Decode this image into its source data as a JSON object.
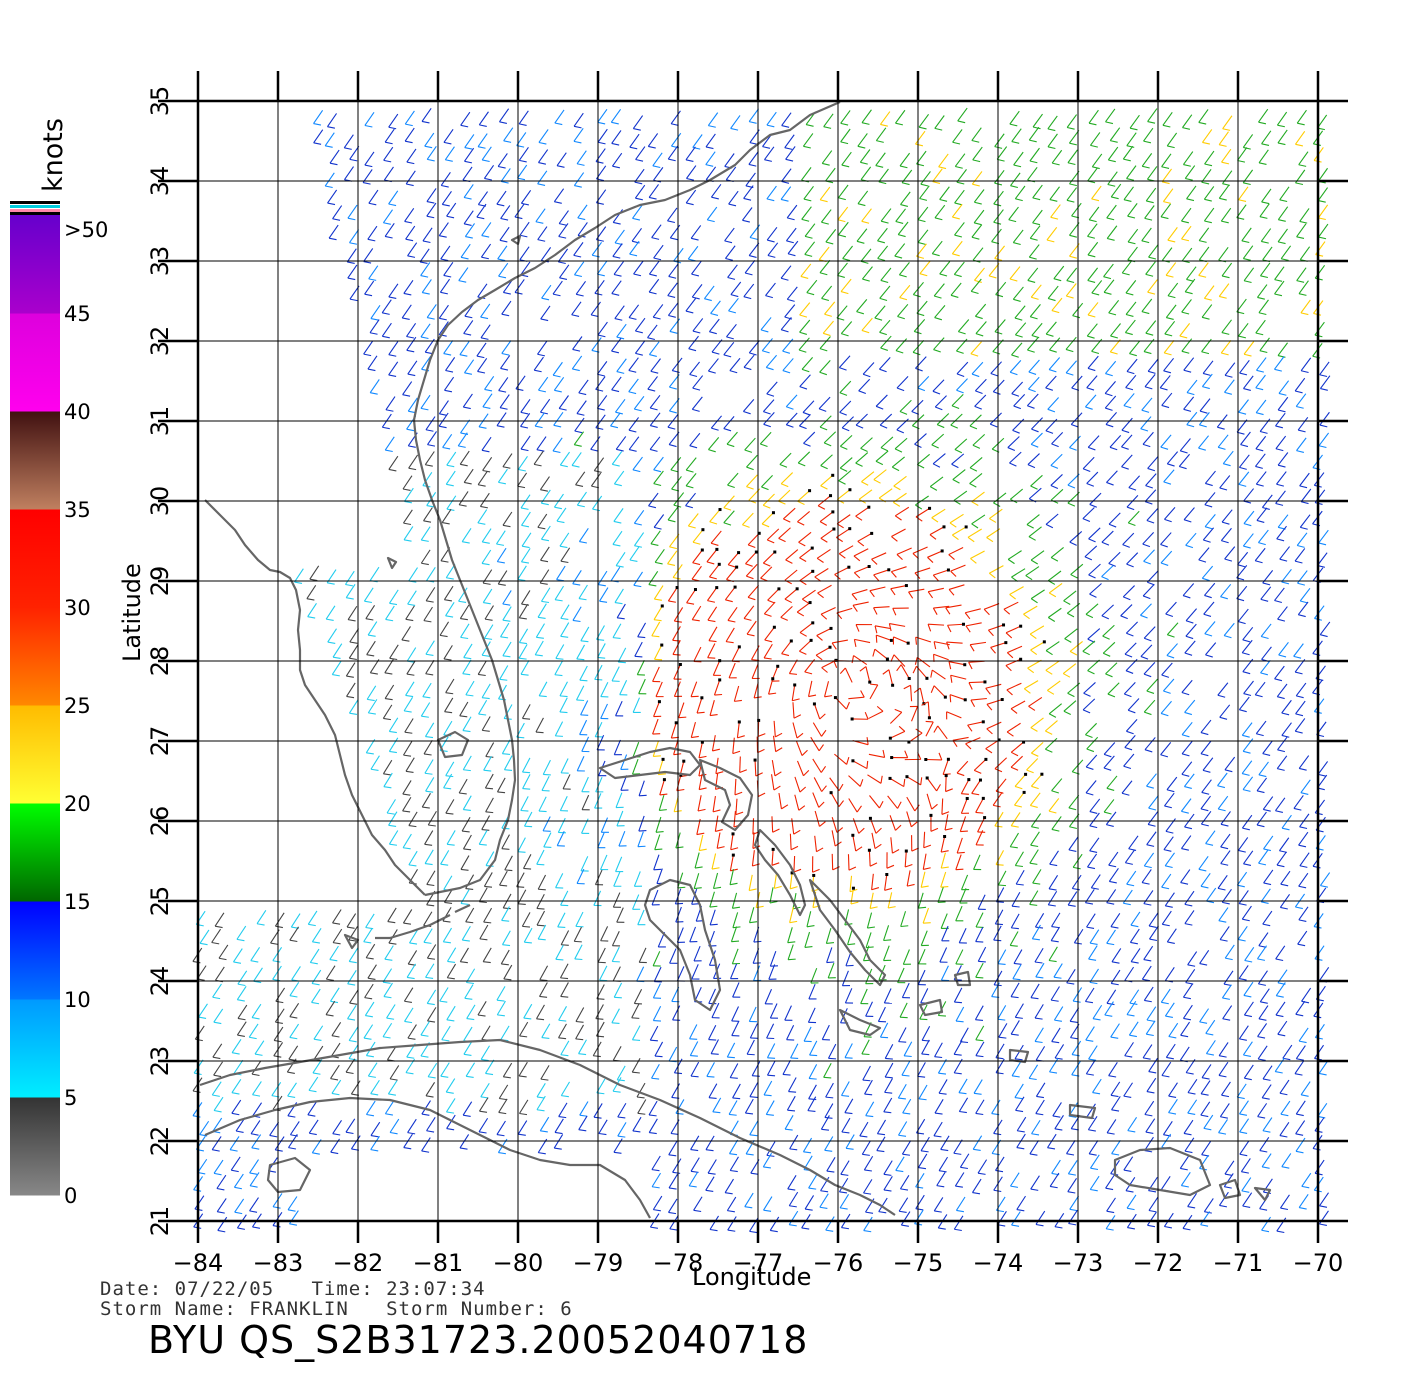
{
  "map": {
    "lon_range": [
      -84,
      -70
    ],
    "lat_range": [
      21,
      35
    ],
    "x_ticks": [
      "−84",
      "−83",
      "−82",
      "−81",
      "−80",
      "−79",
      "−78",
      "−77",
      "−76",
      "−75",
      "−74",
      "−73",
      "−72",
      "−71",
      "−70"
    ],
    "y_ticks": [
      "35",
      "34",
      "33",
      "32",
      "31",
      "30",
      "29",
      "28",
      "27",
      "26",
      "25",
      "24",
      "23",
      "22",
      "21"
    ],
    "xlabel": "Longitude",
    "ylabel": "Latitude",
    "layers": [
      "coastline",
      "graticule",
      "wind-barbs"
    ],
    "storm_center_lon_lat": [
      -75.9,
      27.7
    ]
  },
  "legend": {
    "unit": "knots",
    "labels": [
      ">50",
      "45",
      "40",
      "35",
      "30",
      "25",
      "20",
      "15",
      "10",
      "5",
      "0"
    ],
    "bands": [
      {
        "from": 0,
        "to": 5,
        "colors": [
          "#888888",
          "#333333"
        ]
      },
      {
        "from": 5,
        "to": 10,
        "colors": [
          "#00eeff",
          "#0099ff"
        ]
      },
      {
        "from": 10,
        "to": 15,
        "colors": [
          "#0077ff",
          "#0000ff"
        ]
      },
      {
        "from": 15,
        "to": 20,
        "colors": [
          "#006600",
          "#00ff00"
        ]
      },
      {
        "from": 20,
        "to": 25,
        "colors": [
          "#ffff33",
          "#ffbb00"
        ]
      },
      {
        "from": 25,
        "to": 30,
        "colors": [
          "#ff8800",
          "#ff2200"
        ]
      },
      {
        "from": 30,
        "to": 35,
        "colors": [
          "#ff2200",
          "#ff0000"
        ]
      },
      {
        "from": 35,
        "to": 40,
        "colors": [
          "#c08060",
          "#401010"
        ]
      },
      {
        "from": 40,
        "to": 45,
        "colors": [
          "#ff00ee",
          "#dd00dd"
        ]
      },
      {
        "from": 45,
        "to": 50,
        "colors": [
          "#aa00cc",
          "#6600cc"
        ]
      }
    ]
  },
  "info": {
    "line1": "Date: 07/22/05   Time: 23:07:34",
    "line2": "Storm Name: FRANKLIN   Storm Number: 6"
  },
  "title": "BYU QS_S2B31723.20052040718",
  "colors": {
    "coast": "#666666",
    "grid": "#000000",
    "background": "#ffffff"
  }
}
